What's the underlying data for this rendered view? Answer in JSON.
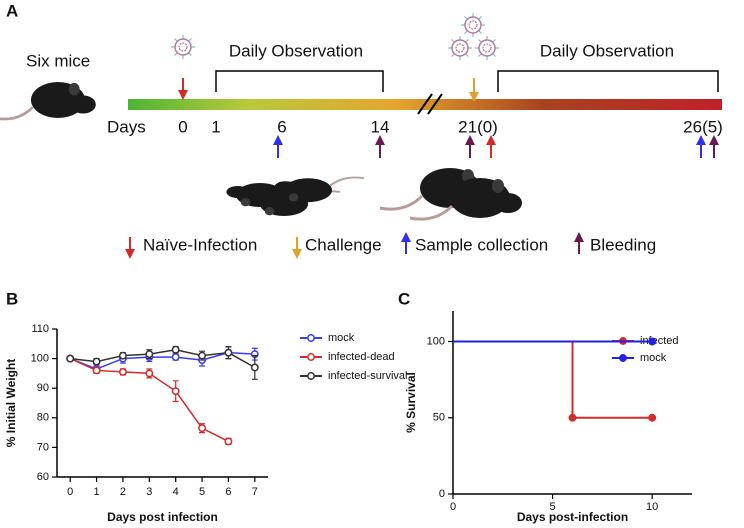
{
  "panel_labels": [
    "A",
    "B",
    "C"
  ],
  "subject_label": "Six mice",
  "timeline": {
    "days_label": "Days",
    "ticks": [
      "0",
      "1",
      "6",
      "14",
      "21(0)",
      "26(5)"
    ],
    "observation_labels": [
      "Daily Observation",
      "Daily Observation"
    ]
  },
  "legend": [
    "Naïve-Infection",
    "Challenge",
    "Sample collection",
    "Bleeding"
  ],
  "chart_data": [
    {
      "type": "line",
      "ylabel": "% Initial Weight",
      "xlabel": "Days post infection",
      "x": [
        0,
        1,
        2,
        3,
        4,
        5,
        6,
        7
      ],
      "xlim": [
        -0.5,
        7.5
      ],
      "xticks": [
        0,
        1,
        2,
        3,
        4,
        5,
        6,
        7
      ],
      "ylim": [
        60,
        110
      ],
      "yticks": [
        60,
        70,
        80,
        90,
        100,
        110
      ],
      "series": [
        {
          "name": "mock",
          "color": "#3b3bf0",
          "values": [
            100,
            96.5,
            100,
            100.5,
            100.5,
            99.5,
            102,
            101.5
          ],
          "errors": [
            0.5,
            1,
            1.5,
            1.5,
            1,
            2,
            2,
            2
          ]
        },
        {
          "name": "infected-dead",
          "color": "#d42a2a",
          "values": [
            100,
            96,
            95.5,
            95,
            89,
            76.5,
            72,
            null
          ],
          "errors": [
            0.5,
            1,
            1,
            1.5,
            3.5,
            1.5,
            1,
            null
          ]
        },
        {
          "name": "infected-survival",
          "color": "#333333",
          "values": [
            100,
            99,
            101,
            101.5,
            103,
            101,
            102,
            97
          ],
          "errors": [
            0.5,
            1,
            1,
            1.5,
            1,
            1.5,
            2,
            4
          ]
        }
      ]
    },
    {
      "type": "line",
      "step": true,
      "ylabel": "% Survival",
      "xlabel": "Days post-infection",
      "xlim": [
        0,
        12
      ],
      "xticks": [
        0,
        5,
        10
      ],
      "ylim": [
        0,
        120
      ],
      "yticks": [
        0,
        50,
        100
      ],
      "series": [
        {
          "name": "infected",
          "color": "#d42a2a",
          "x": [
            0,
            6,
            10
          ],
          "values": [
            100,
            50,
            50
          ]
        },
        {
          "name": "mock",
          "color": "#2222e6",
          "x": [
            0,
            10
          ],
          "values": [
            100,
            100
          ]
        }
      ]
    }
  ]
}
